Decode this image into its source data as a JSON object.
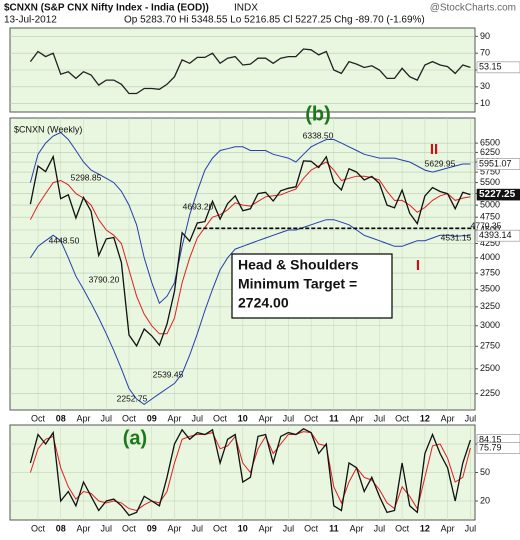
{
  "header": {
    "title": "$CNXN (S&P CNX Nifty Index - India (EOD))",
    "exchange": "INDX",
    "source": "@StockCharts.com",
    "date": "13-Jul-2012",
    "quote": "Op 5283.70 Hi 5348.55 Lo 5216.85 Cl 5227.25 Chg -89.70 (-1.69%)"
  },
  "chart_data": [
    {
      "type": "line",
      "series": [
        {
          "color": "#222222",
          "end_label": true,
          "values": [
            60,
            72,
            66,
            70,
            45,
            48,
            40,
            48,
            44,
            32,
            38,
            38,
            33,
            22,
            22,
            28,
            28,
            27,
            33,
            42,
            62,
            58,
            65,
            65,
            70,
            58,
            64,
            66,
            56,
            57,
            64,
            64,
            58,
            64,
            66,
            66,
            75,
            74,
            68,
            72,
            50,
            46,
            60,
            57,
            53,
            55,
            50,
            40,
            40,
            52,
            42,
            38,
            56,
            60,
            56,
            54,
            46,
            56,
            53.15
          ]
        }
      ],
      "ylim": [
        0,
        100
      ],
      "yticks": [
        10,
        30,
        50,
        70,
        90
      ],
      "grid": true
    },
    {
      "type": "line",
      "label": "$CNXN (Weekly)",
      "log_scale": true,
      "grid": true,
      "x": [
        null,
        "Oct",
        null,
        null,
        "08",
        null,
        null,
        "Apr",
        null,
        null,
        "Jul",
        null,
        null,
        "Oct",
        null,
        null,
        "09",
        null,
        null,
        "Apr",
        null,
        null,
        "Jul",
        null,
        null,
        "Oct",
        null,
        null,
        "10",
        null,
        null,
        "Apr",
        null,
        null,
        "Jul",
        null,
        null,
        "Oct",
        null,
        null,
        "11",
        null,
        null,
        "Apr",
        null,
        null,
        "Jul",
        null,
        null,
        "Oct",
        null,
        null,
        "12",
        null,
        null,
        "Apr",
        null,
        null,
        "Jul"
      ],
      "series": [
        {
          "color": "#111111",
          "end_label": true,
          "values": [
            5021,
            5900,
            5762,
            6139,
            5137,
            5224,
            4735,
            5166,
            4870,
            4040,
            4333,
            4360,
            3921,
            2885,
            2755,
            2959,
            2874,
            2763,
            3021,
            3474,
            4449,
            4291,
            4636,
            4662,
            5084,
            4712,
            5033,
            5201,
            4882,
            4922,
            5249,
            5278,
            5087,
            5313,
            5368,
            5402,
            6030,
            6018,
            5863,
            6135,
            5506,
            5333,
            5834,
            5750,
            5560,
            5647,
            5482,
            5001,
            4943,
            5327,
            4832,
            4624,
            5199,
            5385,
            5296,
            5248,
            4924,
            5279,
            5227.25
          ]
        },
        {
          "color": "#e02020",
          "values": [
            4700,
            5000,
            5250,
            5500,
            5550,
            5450,
            5250,
            5150,
            5000,
            4700,
            4500,
            4400,
            4250,
            3800,
            3400,
            3150,
            3000,
            2900,
            2900,
            3100,
            3600,
            4000,
            4350,
            4550,
            4750,
            4800,
            4900,
            5050,
            5000,
            4980,
            5080,
            5180,
            5200,
            5220,
            5290,
            5350,
            5600,
            5800,
            5900,
            6000,
            5800,
            5550,
            5600,
            5650,
            5650,
            5620,
            5560,
            5300,
            5100,
            5100,
            5000,
            4850,
            4950,
            5100,
            5200,
            5250,
            5100,
            5150,
            5180
          ]
        },
        {
          "color": "#2440b0",
          "end_label": true,
          "values": [
            5500,
            6200,
            6500,
            6700,
            6800,
            6600,
            6300,
            6000,
            5800,
            5700,
            5600,
            5500,
            5300,
            5000,
            4600,
            4000,
            3600,
            3300,
            3400,
            3600,
            4200,
            4800,
            5300,
            5800,
            6100,
            6300,
            6350,
            6400,
            6400,
            6300,
            6300,
            6300,
            6200,
            6150,
            6100,
            6000,
            6200,
            6400,
            6500,
            6600,
            6600,
            6500,
            6400,
            6300,
            6200,
            6150,
            6100,
            6100,
            6100,
            6050,
            6000,
            5900,
            5800,
            5750,
            5800,
            5850,
            5900,
            5950,
            5951.07
          ]
        },
        {
          "color": "#2440b0",
          "end_label": true,
          "values": [
            4000,
            4200,
            4300,
            4400,
            4300,
            4000,
            3700,
            3500,
            3300,
            3100,
            2900,
            2700,
            2500,
            2300,
            2200,
            2150,
            2200,
            2250,
            2300,
            2350,
            2450,
            2650,
            2900,
            3200,
            3500,
            3800,
            4000,
            4150,
            4200,
            4250,
            4300,
            4350,
            4400,
            4450,
            4500,
            4500,
            4550,
            4600,
            4650,
            4700,
            4700,
            4650,
            4600,
            4500,
            4400,
            4350,
            4300,
            4250,
            4200,
            4200,
            4250,
            4300,
            4300,
            4350,
            4400,
            4400,
            4380,
            4390,
            4393.14
          ]
        }
      ],
      "ylim": [
        2100,
        7230
      ],
      "yticks": [
        2250,
        2500,
        2750,
        3000,
        3250,
        3500,
        3750,
        4000,
        4250,
        4500,
        4750,
        5000,
        5250,
        5500,
        5750,
        6000,
        6250,
        6500
      ],
      "annotations": [
        {
          "value": 6338.5,
          "label": "6338.50"
        },
        5298.85,
        {
          "value": 4448.5,
          "label": "4448.50"
        },
        {
          "value": 3790.2,
          "label": "3790.20"
        },
        2252.75,
        2539.45,
        {
          "value": 4693.2,
          "label": "4693.20"
        },
        5629.95,
        4531.15,
        4770.35
      ],
      "waves": [
        "(b)",
        "II",
        "I"
      ],
      "note": [
        "Head & Shoulders",
        "Minimum Target =",
        "2724.00"
      ]
    },
    {
      "type": "line",
      "grid": true,
      "wave": "(a)",
      "x": [
        null,
        "Oct",
        null,
        null,
        "08",
        null,
        null,
        "Apr",
        null,
        null,
        "Jul",
        null,
        null,
        "Oct",
        null,
        null,
        "09",
        null,
        null,
        "Apr",
        null,
        null,
        "Jul",
        null,
        null,
        "Oct",
        null,
        null,
        "10",
        null,
        null,
        "Apr",
        null,
        null,
        "Jul",
        null,
        null,
        "Oct",
        null,
        null,
        "11",
        null,
        null,
        "Apr",
        null,
        null,
        "Jul",
        null,
        null,
        "Oct",
        null,
        null,
        "12",
        null,
        null,
        "Apr",
        null,
        null,
        "Jul"
      ],
      "series": [
        {
          "color": "#111111",
          "end_label": true,
          "values": [
            60,
            90,
            80,
            92,
            20,
            30,
            15,
            40,
            25,
            10,
            20,
            22,
            15,
            5,
            8,
            25,
            20,
            15,
            45,
            80,
            95,
            85,
            92,
            90,
            95,
            60,
            85,
            90,
            40,
            45,
            88,
            90,
            60,
            88,
            92,
            90,
            96,
            92,
            70,
            80,
            15,
            10,
            60,
            55,
            30,
            45,
            25,
            8,
            10,
            60,
            15,
            8,
            70,
            90,
            70,
            55,
            20,
            60,
            84.15
          ]
        },
        {
          "color": "#e02020",
          "end_label": true,
          "values": [
            50,
            75,
            85,
            88,
            55,
            35,
            22,
            30,
            28,
            20,
            18,
            20,
            18,
            12,
            10,
            16,
            20,
            18,
            30,
            60,
            85,
            88,
            90,
            90,
            92,
            75,
            78,
            88,
            60,
            50,
            75,
            88,
            70,
            80,
            90,
            90,
            93,
            92,
            80,
            78,
            35,
            18,
            40,
            55,
            45,
            42,
            32,
            18,
            12,
            35,
            25,
            12,
            45,
            78,
            80,
            65,
            40,
            45,
            75.79
          ]
        }
      ],
      "ylim": [
        0,
        100
      ],
      "yticks": [
        20,
        50,
        80
      ]
    }
  ]
}
